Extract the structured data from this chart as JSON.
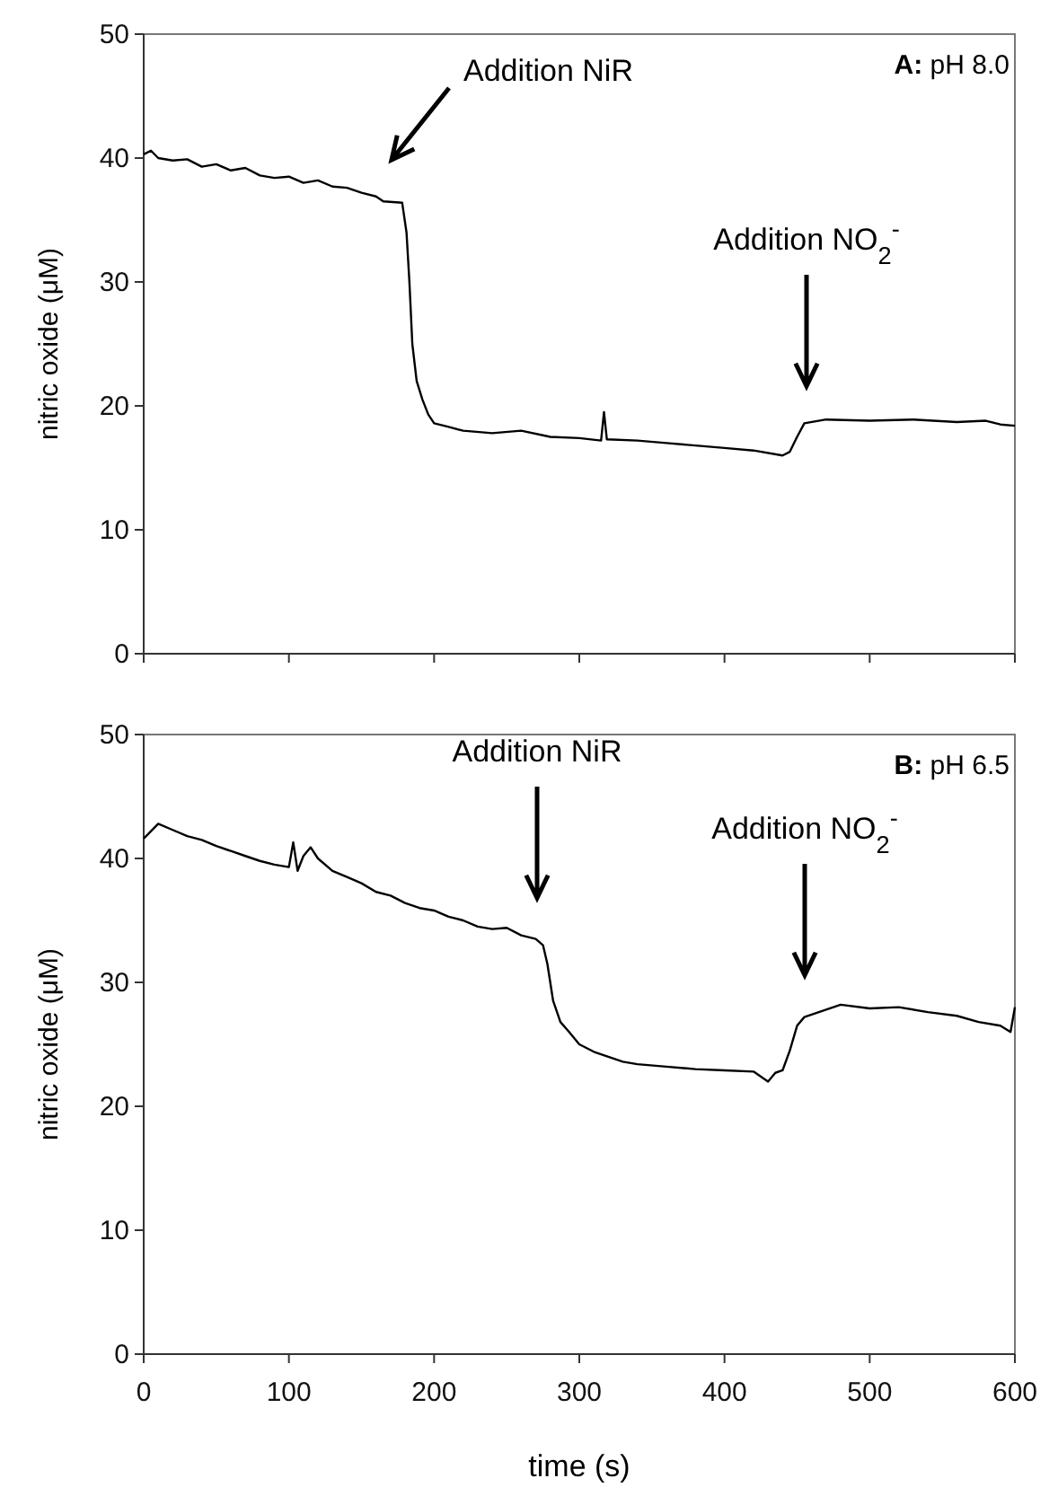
{
  "chart_data": [
    {
      "type": "line",
      "ylabel": "nitric oxide (μM)",
      "tick_labels": "y",
      "color": "#000000",
      "x": [
        0,
        5,
        10,
        20,
        30,
        40,
        50,
        60,
        70,
        80,
        90,
        100,
        110,
        120,
        130,
        140,
        150,
        160,
        165,
        178,
        181,
        183,
        185,
        188,
        192,
        196,
        200,
        210,
        220,
        240,
        260,
        280,
        300,
        315,
        317,
        319,
        340,
        360,
        380,
        400,
        420,
        440,
        445,
        450,
        455,
        470,
        500,
        530,
        560,
        580,
        590,
        600
      ],
      "values": [
        40.3,
        40.6,
        40.0,
        39.8,
        39.9,
        39.3,
        39.5,
        39.0,
        39.2,
        38.6,
        38.4,
        38.5,
        38.0,
        38.2,
        37.7,
        37.6,
        37.2,
        36.9,
        36.5,
        36.4,
        34,
        30,
        25,
        22,
        20.5,
        19.3,
        18.6,
        18.3,
        18.0,
        17.8,
        18.0,
        17.5,
        17.4,
        17.2,
        19.5,
        17.3,
        17.2,
        17.0,
        16.8,
        16.6,
        16.4,
        16.0,
        16.3,
        17.5,
        18.6,
        18.9,
        18.8,
        18.9,
        18.7,
        18.8,
        18.5,
        18.4
      ],
      "xlim": [
        0,
        600
      ],
      "xticks": [
        0,
        100,
        200,
        300,
        400,
        500,
        600
      ],
      "ylim": [
        0,
        50
      ],
      "yticks": [
        0,
        10,
        20,
        30,
        40,
        50
      ],
      "annotations": [
        "Addition NiR",
        "Addition NO$_{2}$$^{-}$",
        "A: pH 8.0"
      ]
    },
    {
      "type": "line",
      "ylabel": "nitric oxide (μM)",
      "xlabel": "time (s)",
      "color": "#000000",
      "x": [
        0,
        5,
        10,
        20,
        30,
        40,
        50,
        60,
        70,
        80,
        90,
        100,
        103,
        106,
        110,
        115,
        120,
        130,
        140,
        150,
        160,
        170,
        180,
        190,
        200,
        210,
        220,
        230,
        240,
        250,
        260,
        270,
        275,
        278,
        282,
        287,
        293,
        300,
        310,
        320,
        330,
        340,
        360,
        380,
        400,
        420,
        430,
        435,
        440,
        445,
        450,
        455,
        465,
        480,
        500,
        520,
        540,
        560,
        575,
        590,
        597,
        600
      ],
      "values": [
        41.6,
        42.2,
        42.8,
        42.3,
        41.8,
        41.5,
        41.0,
        40.6,
        40.2,
        39.8,
        39.5,
        39.3,
        41.3,
        39.0,
        40.2,
        40.9,
        40.0,
        39.0,
        38.5,
        38.0,
        37.3,
        37.0,
        36.4,
        36.0,
        35.8,
        35.3,
        35.0,
        34.5,
        34.3,
        34.4,
        33.8,
        33.5,
        33.0,
        31.5,
        28.5,
        26.8,
        26.0,
        25.0,
        24.4,
        24.0,
        23.6,
        23.4,
        23.2,
        23.0,
        22.9,
        22.8,
        22.0,
        22.7,
        22.9,
        24.5,
        26.5,
        27.2,
        27.6,
        28.2,
        27.9,
        28.0,
        27.6,
        27.3,
        26.8,
        26.5,
        26.0,
        28.0
      ],
      "xlim": [
        0,
        600
      ],
      "xticks": [
        0,
        100,
        200,
        300,
        400,
        500,
        600
      ],
      "ylim": [
        0,
        50
      ],
      "yticks": [
        0,
        10,
        20,
        30,
        40,
        50
      ],
      "annotations": [
        "Addition NiR",
        "Addition NO$_{2}$$^{-}$",
        "B: pH 6.5"
      ]
    }
  ]
}
